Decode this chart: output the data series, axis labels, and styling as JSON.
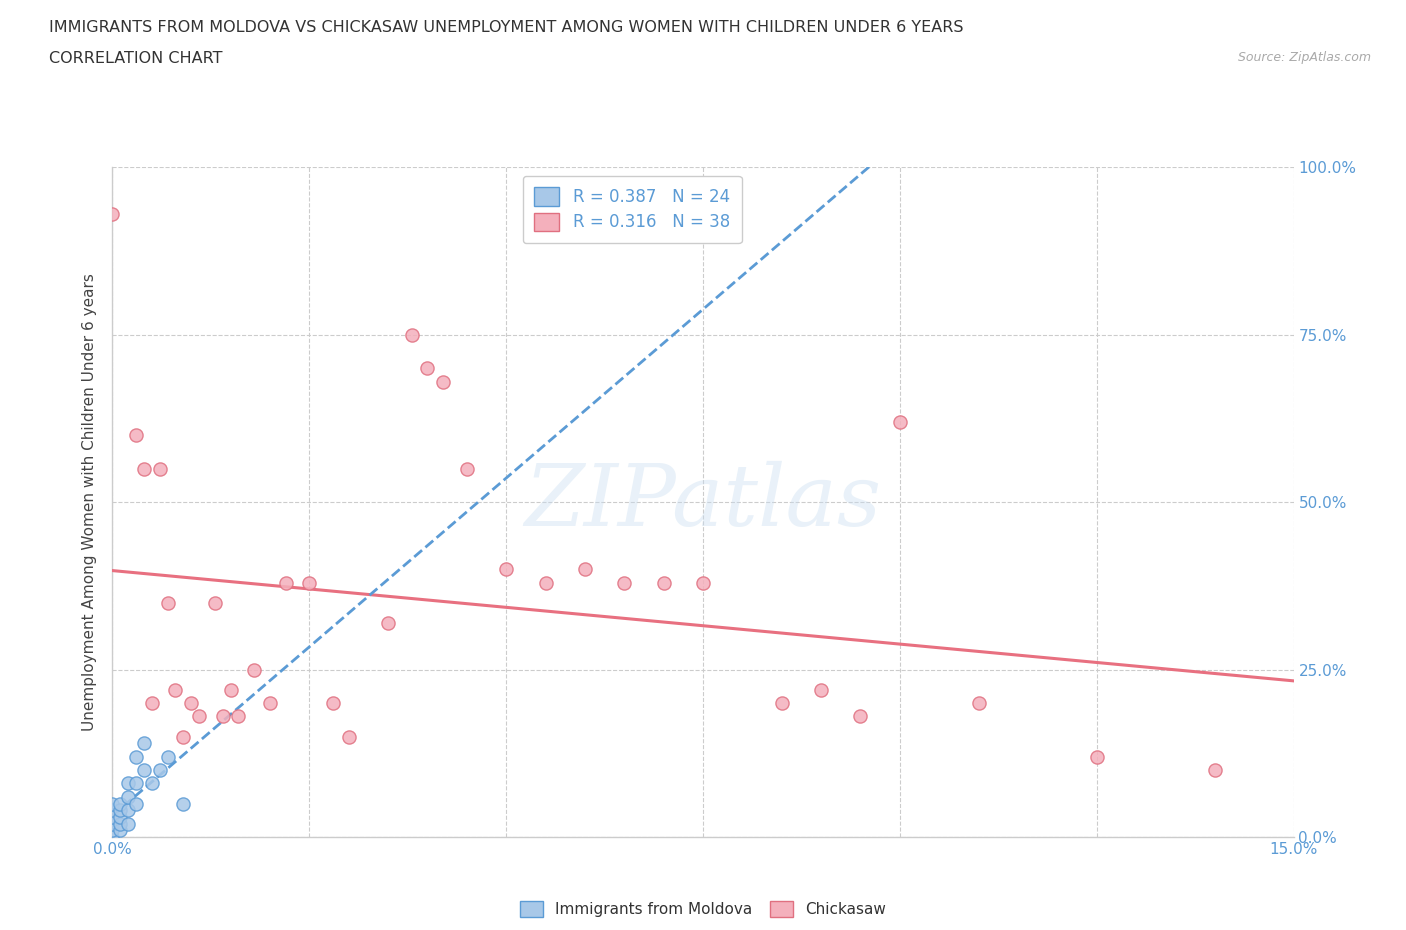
{
  "title_line1": "IMMIGRANTS FROM MOLDOVA VS CHICKASAW UNEMPLOYMENT AMONG WOMEN WITH CHILDREN UNDER 6 YEARS",
  "title_line2": "CORRELATION CHART",
  "source": "Source: ZipAtlas.com",
  "ylabel": "Unemployment Among Women with Children Under 6 years",
  "xlim": [
    0.0,
    0.15
  ],
  "ylim": [
    0.0,
    1.0
  ],
  "moldova_R": 0.387,
  "moldova_N": 24,
  "chickasaw_R": 0.316,
  "chickasaw_N": 38,
  "moldova_scatter_color": "#a8c8e8",
  "moldova_edge_color": "#5b9bd5",
  "chickasaw_scatter_color": "#f4b0bc",
  "chickasaw_edge_color": "#e07080",
  "moldova_trend_color": "#5b9bd5",
  "chickasaw_trend_color": "#e87080",
  "ytick_vals": [
    0.0,
    0.25,
    0.5,
    0.75,
    1.0
  ],
  "ytick_labels_right": [
    "0.0%",
    "25.0%",
    "50.0%",
    "75.0%",
    "100.0%"
  ],
  "xtick_vals": [
    0.0,
    0.025,
    0.05,
    0.075,
    0.1,
    0.125,
    0.15
  ],
  "xtick_labels": [
    "0.0%",
    "",
    "",
    "",
    "",
    "",
    "15.0%"
  ],
  "moldova_x": [
    0.0,
    0.0,
    0.0,
    0.0,
    0.0,
    0.0,
    0.001,
    0.001,
    0.001,
    0.001,
    0.001,
    0.002,
    0.002,
    0.002,
    0.002,
    0.003,
    0.003,
    0.003,
    0.004,
    0.004,
    0.005,
    0.006,
    0.007,
    0.009
  ],
  "moldova_y": [
    0.0,
    0.01,
    0.02,
    0.03,
    0.04,
    0.05,
    0.01,
    0.02,
    0.03,
    0.04,
    0.05,
    0.02,
    0.04,
    0.06,
    0.08,
    0.05,
    0.08,
    0.12,
    0.1,
    0.14,
    0.08,
    0.1,
    0.12,
    0.05
  ],
  "chickasaw_x": [
    0.0,
    0.003,
    0.004,
    0.005,
    0.006,
    0.007,
    0.008,
    0.009,
    0.01,
    0.011,
    0.013,
    0.014,
    0.015,
    0.016,
    0.018,
    0.02,
    0.022,
    0.025,
    0.028,
    0.03,
    0.035,
    0.038,
    0.04,
    0.042,
    0.045,
    0.05,
    0.055,
    0.06,
    0.065,
    0.07,
    0.075,
    0.085,
    0.09,
    0.095,
    0.1,
    0.11,
    0.125,
    0.14
  ],
  "chickasaw_y": [
    0.93,
    0.6,
    0.55,
    0.2,
    0.55,
    0.35,
    0.22,
    0.15,
    0.2,
    0.18,
    0.35,
    0.18,
    0.22,
    0.18,
    0.25,
    0.2,
    0.38,
    0.38,
    0.2,
    0.15,
    0.32,
    0.75,
    0.7,
    0.68,
    0.55,
    0.4,
    0.38,
    0.4,
    0.38,
    0.38,
    0.38,
    0.2,
    0.22,
    0.18,
    0.62,
    0.2,
    0.12,
    0.1
  ],
  "grid_color": "#cccccc",
  "axis_label_color": "#5b9bd5",
  "title_color": "#333333",
  "watermark_text": "ZIPatlas",
  "legend_bottom_labels": [
    "Immigrants from Moldova",
    "Chickasaw"
  ]
}
